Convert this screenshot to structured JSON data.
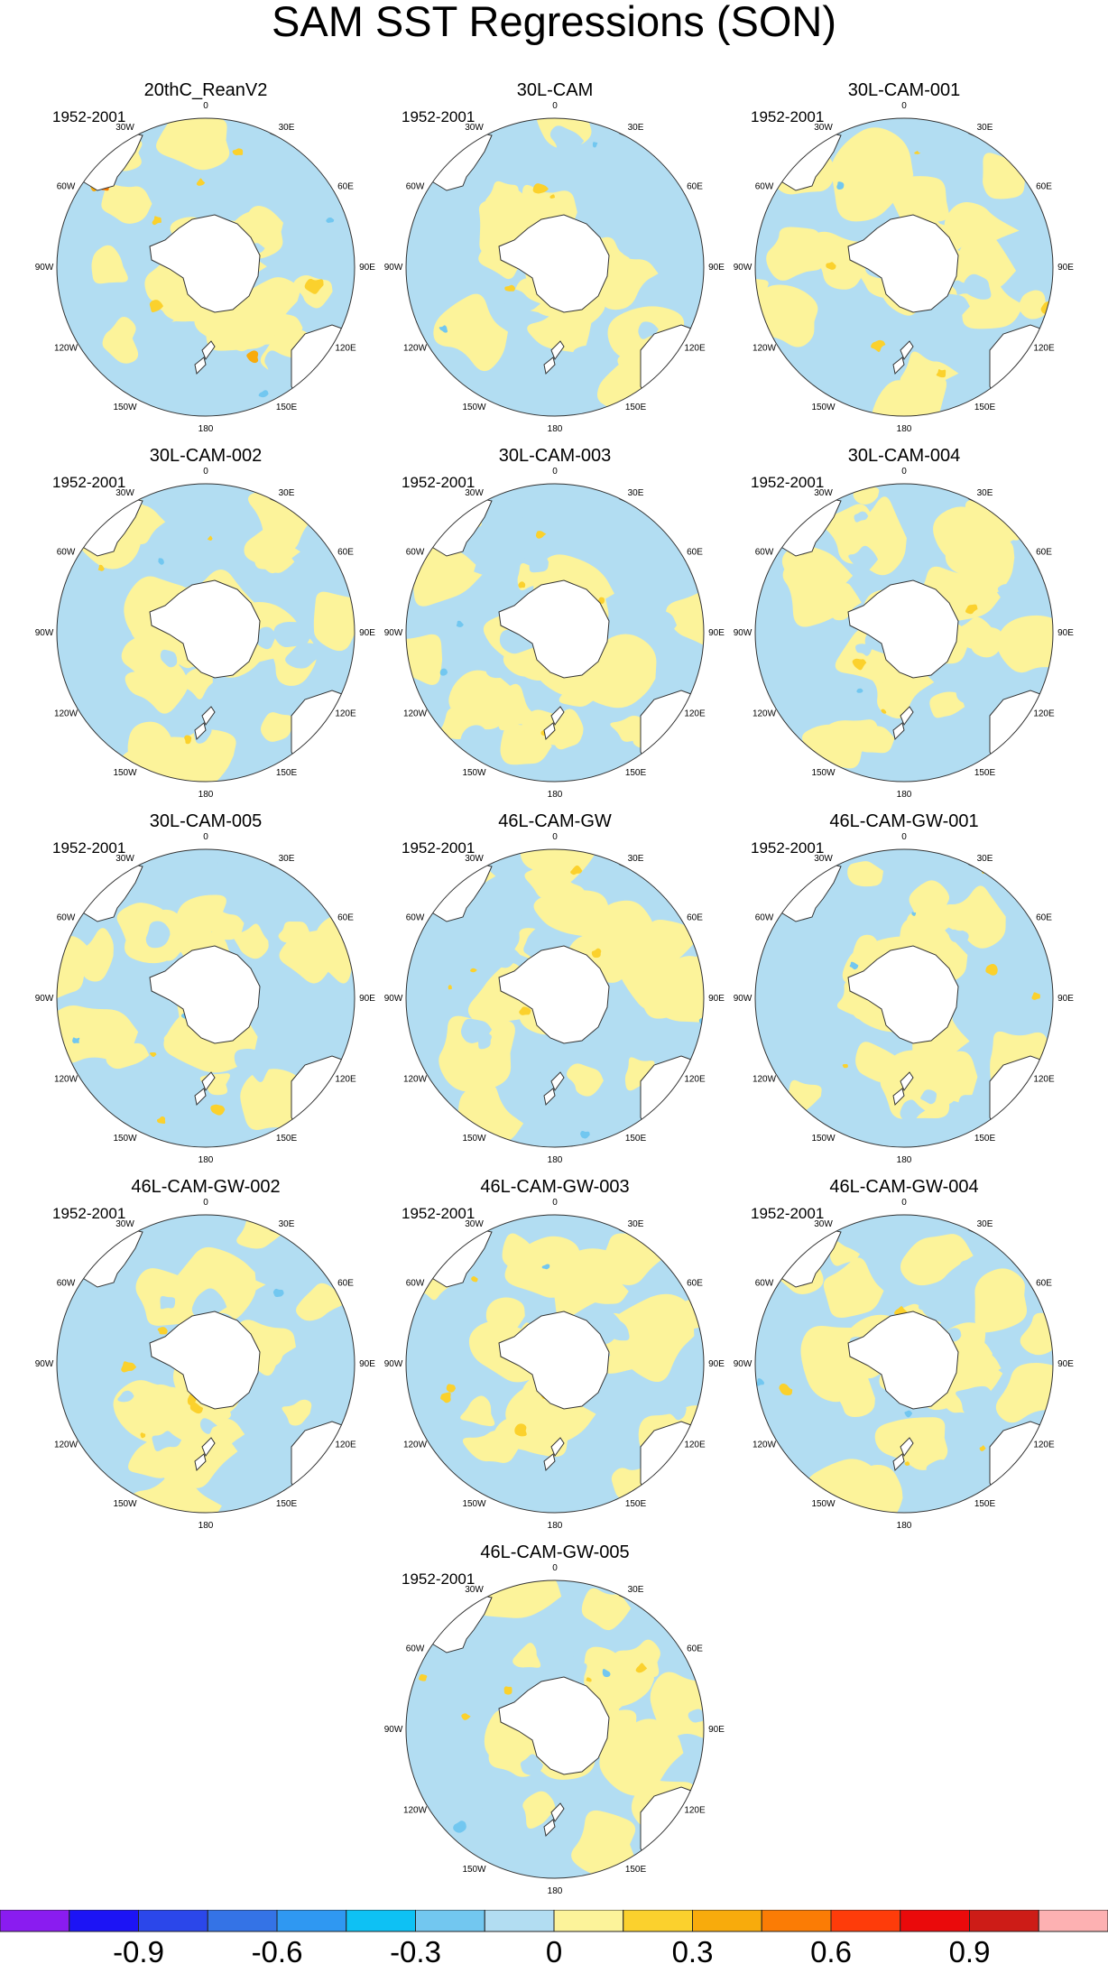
{
  "title": "SAM SST Regressions (SON)",
  "period": "1952-2001",
  "lon_labels": [
    "0",
    "30E",
    "60E",
    "90E",
    "120E",
    "150E",
    "180",
    "150W",
    "120W",
    "90W",
    "60W",
    "30W"
  ],
  "panels": [
    {
      "name": "20thC_ReanV2",
      "seed": 11,
      "warm_bias": 0.55,
      "strong": true
    },
    {
      "name": "30L-CAM",
      "seed": 23,
      "warm_bias": 0.52,
      "strong": false
    },
    {
      "name": "30L-CAM-001",
      "seed": 37,
      "warm_bias": 0.6,
      "strong": false
    },
    {
      "name": "30L-CAM-002",
      "seed": 41,
      "warm_bias": 0.65,
      "strong": false
    },
    {
      "name": "30L-CAM-003",
      "seed": 53,
      "warm_bias": 0.55,
      "strong": false
    },
    {
      "name": "30L-CAM-004",
      "seed": 67,
      "warm_bias": 0.62,
      "strong": false
    },
    {
      "name": "30L-CAM-005",
      "seed": 71,
      "warm_bias": 0.62,
      "strong": false
    },
    {
      "name": "46L-CAM-GW",
      "seed": 83,
      "warm_bias": 0.42,
      "strong": false
    },
    {
      "name": "46L-CAM-GW-001",
      "seed": 97,
      "warm_bias": 0.5,
      "strong": false
    },
    {
      "name": "46L-CAM-GW-002",
      "seed": 101,
      "warm_bias": 0.5,
      "strong": false
    },
    {
      "name": "46L-CAM-GW-003",
      "seed": 113,
      "warm_bias": 0.55,
      "strong": false
    },
    {
      "name": "46L-CAM-GW-004",
      "seed": 127,
      "warm_bias": 0.55,
      "strong": false
    },
    {
      "name": "46L-CAM-GW-005",
      "seed": 131,
      "warm_bias": 0.6,
      "strong": false
    }
  ],
  "colorbar": {
    "colors": [
      "#8a1cf0",
      "#1c14f5",
      "#2b47ea",
      "#3473e6",
      "#2f98f2",
      "#0ec1f4",
      "#72c7f0",
      "#b2ddf2",
      "#fcf39a",
      "#fbd12d",
      "#f8ab0c",
      "#fb7c05",
      "#fe3c0a",
      "#ea0a0b",
      "#cd1c17",
      "#fdb1b2"
    ],
    "tick_labels": [
      "-0.9",
      "-0.6",
      "-0.3",
      "0",
      "0.3",
      "0.6",
      "0.9"
    ],
    "tick_values": [
      -0.9,
      -0.6,
      -0.3,
      0,
      0.3,
      0.6,
      0.9
    ],
    "range": [
      -1.2,
      1.2
    ]
  }
}
